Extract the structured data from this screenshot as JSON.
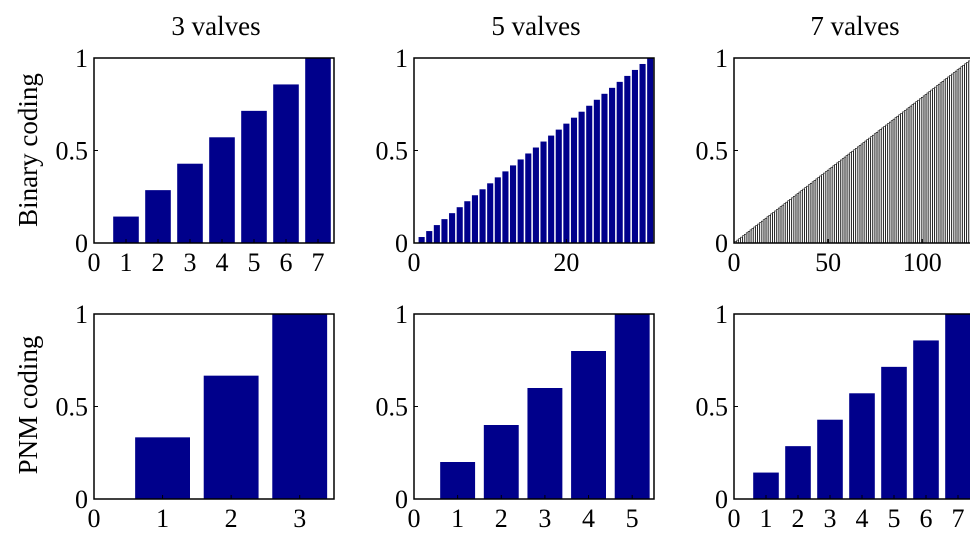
{
  "figure": {
    "column_titles": [
      "3 valves",
      "5 valves",
      "7 valves"
    ],
    "row_labels": [
      "Binary coding",
      "PNM coding"
    ],
    "bar_color": "#00008B",
    "thin_bar_color": "#000000"
  },
  "chart_data": [
    {
      "id": "binary-3",
      "type": "bar",
      "row": 0,
      "col": 0,
      "title": "3 valves",
      "ylabel": "Binary coding",
      "categories": [
        1,
        2,
        3,
        4,
        5,
        6,
        7
      ],
      "values": [
        0.1429,
        0.2857,
        0.4286,
        0.5714,
        0.7143,
        0.8571,
        1.0
      ],
      "xlim": [
        0,
        7.5
      ],
      "ylim": [
        0,
        1
      ],
      "xticks": [
        0,
        1,
        2,
        3,
        4,
        5,
        6,
        7
      ],
      "xtick_labels": [
        "0",
        "1",
        "2",
        "3",
        "4",
        "5",
        "6",
        "7"
      ],
      "yticks": [
        0,
        0.5,
        1
      ],
      "ytick_labels": [
        "0",
        "0.5",
        "1"
      ]
    },
    {
      "id": "binary-5",
      "type": "bar",
      "row": 0,
      "col": 1,
      "title": "5 valves",
      "formula": "y = x / 31, x = 1..31",
      "values": [
        0.0323,
        0.0645,
        0.0968,
        0.129,
        0.1613,
        0.1935,
        0.2258,
        0.2581,
        0.2903,
        0.3226,
        0.3548,
        0.3871,
        0.4194,
        0.4516,
        0.4839,
        0.5161,
        0.5484,
        0.5806,
        0.6129,
        0.6452,
        0.6774,
        0.7097,
        0.7419,
        0.7742,
        0.8065,
        0.8387,
        0.871,
        0.9032,
        0.9355,
        0.9677,
        1.0
      ],
      "categories_start": 1,
      "xlim": [
        0,
        31.5
      ],
      "ylim": [
        0,
        1
      ],
      "xticks": [
        0,
        20
      ],
      "xtick_labels": [
        "0",
        "20"
      ],
      "yticks": [
        0,
        0.5,
        1
      ],
      "ytick_labels": [
        "0",
        "0.5",
        "1"
      ]
    },
    {
      "id": "binary-7",
      "type": "bar",
      "row": 0,
      "col": 2,
      "title": "7 valves",
      "formula": "y = x / 127, x = 1..127",
      "n": 127,
      "values_rule": "linear",
      "xlim": [
        0,
        127.5
      ],
      "ylim": [
        0,
        1
      ],
      "xticks": [
        0,
        50,
        100
      ],
      "xtick_labels": [
        "0",
        "50",
        "100"
      ],
      "yticks": [
        0,
        0.5,
        1
      ],
      "ytick_labels": [
        "0",
        "0.5",
        "1"
      ]
    },
    {
      "id": "pnm-3",
      "type": "bar",
      "row": 1,
      "col": 0,
      "ylabel": "PNM coding",
      "categories": [
        1,
        2,
        3
      ],
      "values": [
        0.3333,
        0.6667,
        1.0
      ],
      "xlim": [
        0,
        3.5
      ],
      "ylim": [
        0,
        1
      ],
      "xticks": [
        0,
        1,
        2,
        3
      ],
      "xtick_labels": [
        "0",
        "1",
        "2",
        "3"
      ],
      "yticks": [
        0,
        0.5,
        1
      ],
      "ytick_labels": [
        "0",
        "0.5",
        "1"
      ]
    },
    {
      "id": "pnm-5",
      "type": "bar",
      "row": 1,
      "col": 1,
      "categories": [
        1,
        2,
        3,
        4,
        5
      ],
      "values": [
        0.2,
        0.4,
        0.6,
        0.8,
        1.0
      ],
      "xlim": [
        0,
        5.5
      ],
      "ylim": [
        0,
        1
      ],
      "xticks": [
        0,
        1,
        2,
        3,
        4,
        5
      ],
      "xtick_labels": [
        "0",
        "1",
        "2",
        "3",
        "4",
        "5"
      ],
      "yticks": [
        0,
        0.5,
        1
      ],
      "ytick_labels": [
        "0",
        "0.5",
        "1"
      ]
    },
    {
      "id": "pnm-7",
      "type": "bar",
      "row": 1,
      "col": 2,
      "categories": [
        1,
        2,
        3,
        4,
        5,
        6,
        7
      ],
      "values": [
        0.1429,
        0.2857,
        0.4286,
        0.5714,
        0.7143,
        0.8571,
        1.0
      ],
      "xlim": [
        0,
        7.5
      ],
      "ylim": [
        0,
        1
      ],
      "xticks": [
        0,
        1,
        2,
        3,
        4,
        5,
        6,
        7
      ],
      "xtick_labels": [
        "0",
        "1",
        "2",
        "3",
        "4",
        "5",
        "6",
        "7"
      ],
      "yticks": [
        0,
        0.5,
        1
      ],
      "ytick_labels": [
        "0",
        "0.5",
        "1"
      ]
    }
  ]
}
